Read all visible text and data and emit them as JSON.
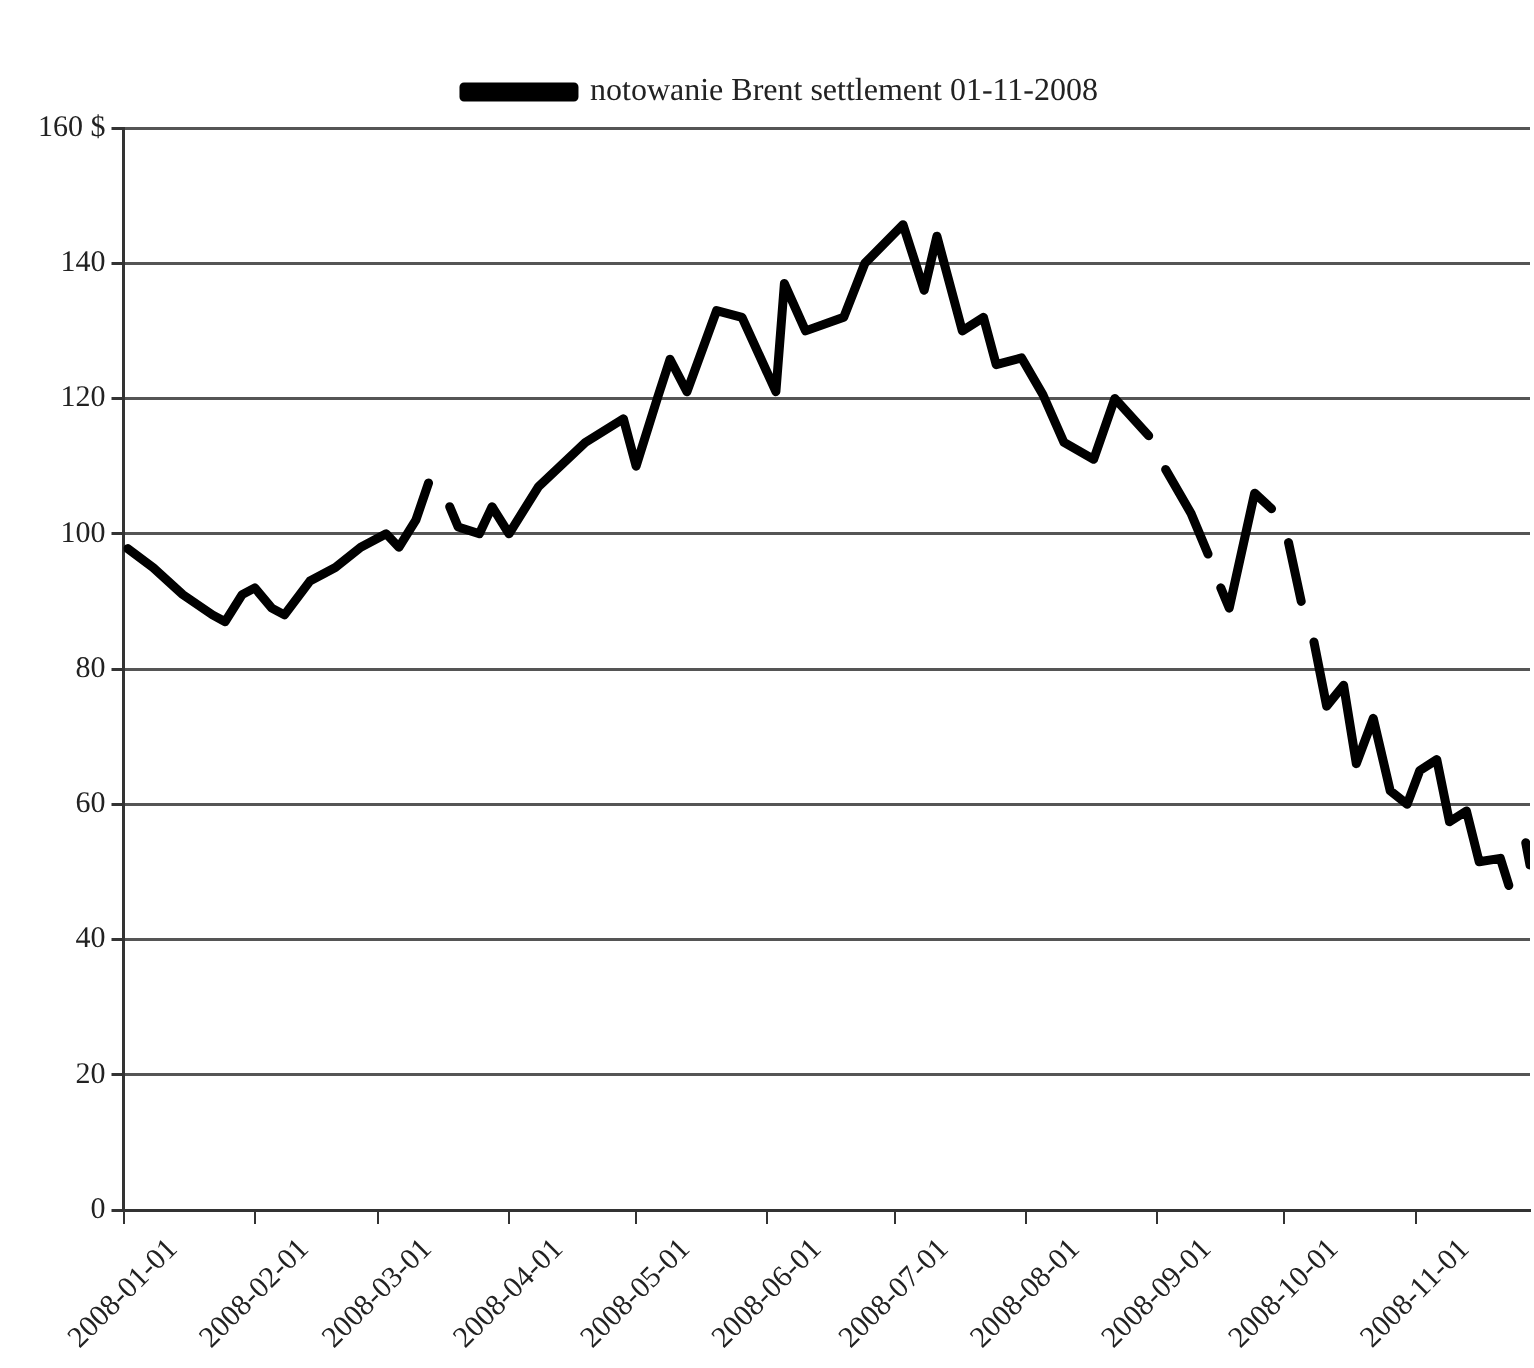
{
  "chart_data": {
    "type": "line",
    "legend": "top",
    "grid": "y",
    "marker": "none",
    "line_style": "solid",
    "x": [
      "2008-01-02",
      "2008-01-08",
      "2008-01-15",
      "2008-01-22",
      "2008-01-25",
      "2008-01-29",
      "2008-02-01",
      "2008-02-05",
      "2008-02-08",
      "2008-02-14",
      "2008-02-20",
      "2008-02-26",
      "2008-03-03",
      "2008-03-06",
      "2008-03-10",
      "2008-03-13",
      "2008-03-15",
      "2008-03-18",
      "2008-03-20",
      "2008-03-25",
      "2008-03-28",
      "2008-04-01",
      "2008-04-08",
      "2008-04-19",
      "2008-04-28",
      "2008-05-01",
      "2008-05-06",
      "2008-05-09",
      "2008-05-13",
      "2008-05-20",
      "2008-05-26",
      "2008-06-03",
      "2008-06-05",
      "2008-06-10",
      "2008-06-19",
      "2008-06-24",
      "2008-07-03",
      "2008-07-08",
      "2008-07-11",
      "2008-07-17",
      "2008-07-22",
      "2008-07-25",
      "2008-07-31",
      "2008-08-05",
      "2008-08-10",
      "2008-08-17",
      "2008-08-22",
      "2008-08-30",
      "2008-09-01",
      "2008-09-03",
      "2008-09-09",
      "2008-09-13",
      "2008-09-14",
      "2008-09-16",
      "2008-09-18",
      "2008-09-24",
      "2008-09-28",
      "2008-09-30",
      "2008-10-02",
      "2008-10-05",
      "2008-10-06",
      "2008-10-08",
      "2008-10-11",
      "2008-10-15",
      "2008-10-18",
      "2008-10-22",
      "2008-10-26",
      "2008-10-30",
      "2008-11-02",
      "2008-11-06",
      "2008-11-09",
      "2008-11-13",
      "2008-11-16",
      "2008-11-21",
      "2008-11-23",
      "2008-11-25",
      "2008-11-27",
      "2008-11-28"
    ],
    "series": [
      {
        "name": "notowanie Brent settlement 01-11-2008",
        "color": "#000000",
        "values": [
          97.8,
          95,
          91,
          88,
          87,
          91,
          92,
          89,
          88,
          93,
          95,
          98,
          100,
          98,
          102,
          107.5,
          null,
          104,
          101,
          100,
          104,
          100,
          107,
          113.5,
          117,
          110,
          120,
          125.8,
          121,
          133,
          132,
          121,
          137,
          130,
          132,
          140,
          145.7,
          136,
          144,
          130,
          132,
          125,
          126,
          120.6,
          113.5,
          111,
          120,
          114.5,
          null,
          109.5,
          103,
          97,
          null,
          92,
          89,
          106,
          103.7,
          null,
          98.7,
          90,
          null,
          84,
          74.5,
          77.6,
          66,
          72.7,
          62,
          60,
          65,
          66.6,
          57.4,
          59,
          51.5,
          52,
          48,
          null,
          54.3,
          51
        ]
      }
    ],
    "xlim": [
      "2008-01-01",
      "2008-11-28"
    ],
    "xticks": [
      "2008-01-01",
      "2008-02-01",
      "2008-03-01",
      "2008-04-01",
      "2008-05-01",
      "2008-06-01",
      "2008-07-01",
      "2008-08-01",
      "2008-09-01",
      "2008-10-01",
      "2008-11-01"
    ],
    "ylim": [
      0,
      160
    ],
    "yticks": [
      0,
      20,
      40,
      60,
      80,
      100,
      120,
      140,
      {
        "value": 160,
        "label": "160 $"
      }
    ]
  }
}
